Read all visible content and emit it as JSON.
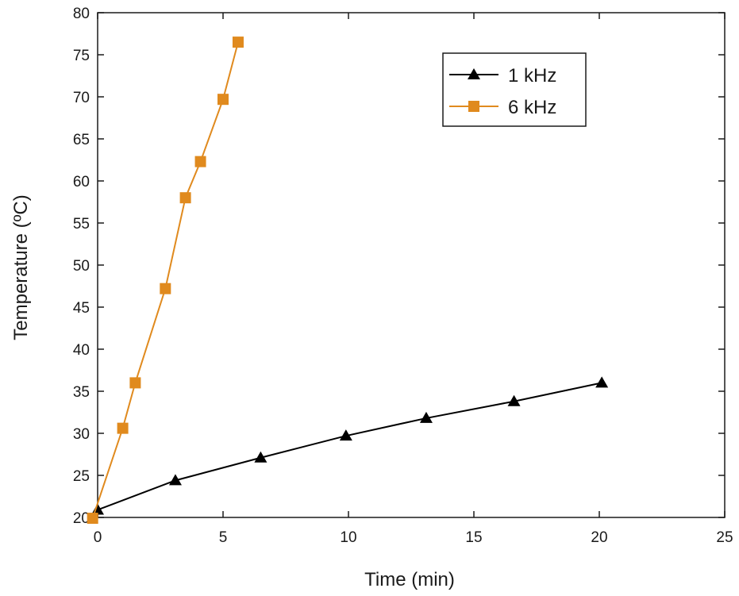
{
  "chart_data": {
    "type": "line",
    "xlabel": "Time (min)",
    "ylabel": "Temperature (ºC)",
    "xlim": [
      0,
      25
    ],
    "ylim": [
      20,
      80
    ],
    "xticks": [
      0,
      5,
      10,
      15,
      20,
      25
    ],
    "yticks": [
      20,
      25,
      30,
      35,
      40,
      45,
      50,
      55,
      60,
      65,
      70,
      75,
      80
    ],
    "grid": false,
    "legend_position": "top-right",
    "series": [
      {
        "name": "1 kHz",
        "color": "#000000",
        "marker": "triangle",
        "x": [
          0,
          3.1,
          6.5,
          9.9,
          13.1,
          16.6,
          20.1
        ],
        "y": [
          20.9,
          24.4,
          27.1,
          29.7,
          31.8,
          33.8,
          36.0
        ]
      },
      {
        "name": "6 kHz",
        "color": "#e08a1e",
        "marker": "square",
        "x": [
          -0.2,
          1.0,
          1.5,
          2.7,
          3.5,
          4.1,
          5.0,
          5.6
        ],
        "y": [
          19.9,
          30.6,
          36.0,
          47.2,
          58.0,
          62.3,
          69.7,
          76.5
        ]
      }
    ]
  }
}
